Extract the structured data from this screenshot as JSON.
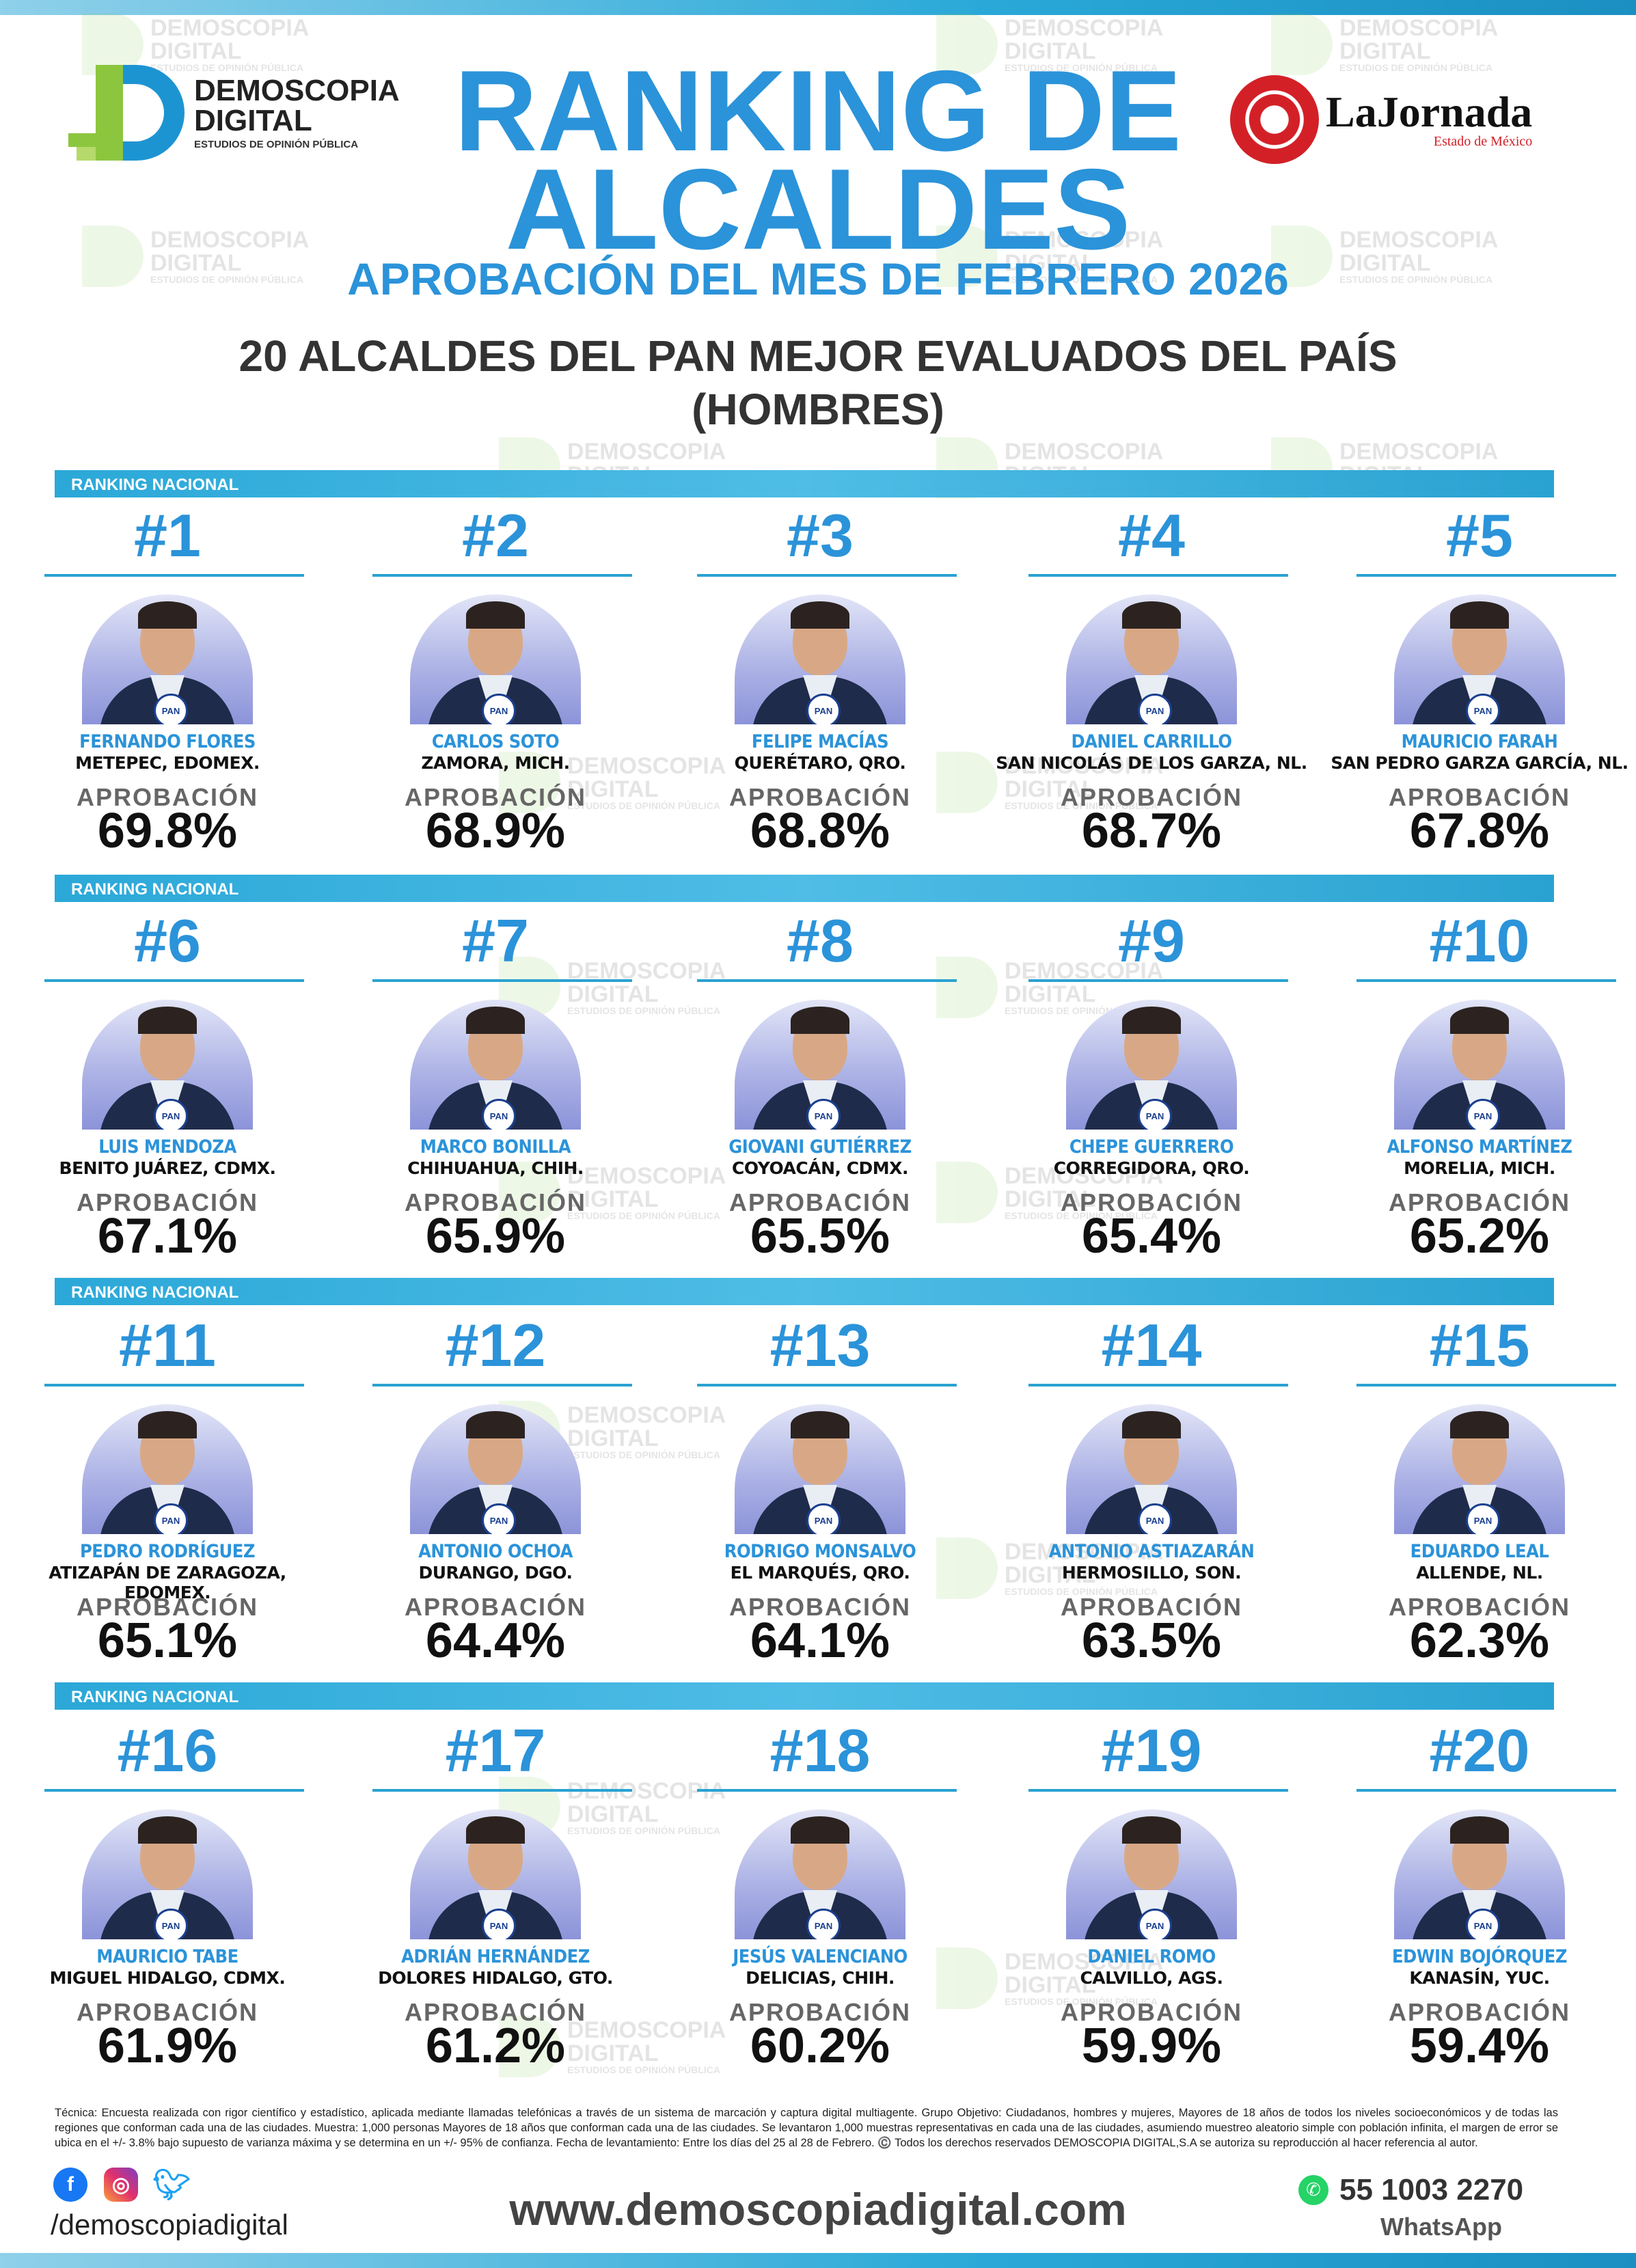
{
  "header": {
    "title_line1": "RANKING DE",
    "title_line2": "ALCALDES",
    "subtitle": "APROBACIÓN DEL MES DE FEBRERO 2026",
    "heading_line1": "20 ALCALDES DEL PAN MEJOR EVALUADOS DEL PAÍS",
    "heading_line2": "(HOMBRES)"
  },
  "logos": {
    "demoscopia": {
      "line1": "DEMOSCOPIA",
      "line2": "DIGITAL",
      "tagline": "ESTUDIOS DE OPINIÓN PÚBLICA"
    },
    "jornada": {
      "name": "LaJornada",
      "sub": "Estado de México"
    }
  },
  "watermark": {
    "line1": "DEMOSCOPIA",
    "line2": "DIGITAL",
    "line3": "ESTUDIOS DE OPINIÓN PÚBLICA"
  },
  "row_label": "RANKING NACIONAL",
  "approval_label": "APROBACIÓN",
  "party_badge": "PAN",
  "mayors": [
    {
      "rank": "#1",
      "name": "FERNANDO FLORES",
      "place": "METEPEC, EDOMEX.",
      "approval": "69.8%"
    },
    {
      "rank": "#2",
      "name": "CARLOS SOTO",
      "place": "ZAMORA, MICH.",
      "approval": "68.9%"
    },
    {
      "rank": "#3",
      "name": "FELIPE MACÍAS",
      "place": "QUERÉTARO, QRO.",
      "approval": "68.8%"
    },
    {
      "rank": "#4",
      "name": "DANIEL CARRILLO",
      "place": "SAN NICOLÁS DE LOS GARZA, NL.",
      "approval": "68.7%"
    },
    {
      "rank": "#5",
      "name": "MAURICIO FARAH",
      "place": "SAN PEDRO GARZA GARCÍA, NL.",
      "approval": "67.8%"
    },
    {
      "rank": "#6",
      "name": "LUIS MENDOZA",
      "place": "BENITO JUÁREZ, CDMX.",
      "approval": "67.1%"
    },
    {
      "rank": "#7",
      "name": "MARCO BONILLA",
      "place": "CHIHUAHUA, CHIH.",
      "approval": "65.9%"
    },
    {
      "rank": "#8",
      "name": "GIOVANI GUTIÉRREZ",
      "place": "COYOACÁN, CDMX.",
      "approval": "65.5%"
    },
    {
      "rank": "#9",
      "name": "CHEPE GUERRERO",
      "place": "CORREGIDORA, QRO.",
      "approval": "65.4%"
    },
    {
      "rank": "#10",
      "name": "ALFONSO MARTÍNEZ",
      "place": "MORELIA, MICH.",
      "approval": "65.2%"
    },
    {
      "rank": "#11",
      "name": "PEDRO RODRÍGUEZ",
      "place": "ATIZAPÁN DE ZARAGOZA, EDOMEX.",
      "approval": "65.1%"
    },
    {
      "rank": "#12",
      "name": "ANTONIO OCHOA",
      "place": "DURANGO, DGO.",
      "approval": "64.4%"
    },
    {
      "rank": "#13",
      "name": "RODRIGO MONSALVO",
      "place": "EL MARQUÉS, QRO.",
      "approval": "64.1%"
    },
    {
      "rank": "#14",
      "name": "ANTONIO ASTIAZARÁN",
      "place": "HERMOSILLO, SON.",
      "approval": "63.5%"
    },
    {
      "rank": "#15",
      "name": "EDUARDO LEAL",
      "place": "ALLENDE, NL.",
      "approval": "62.3%"
    },
    {
      "rank": "#16",
      "name": "MAURICIO TABE",
      "place": "MIGUEL HIDALGO, CDMX.",
      "approval": "61.9%"
    },
    {
      "rank": "#17",
      "name": "ADRIÁN HERNÁNDEZ",
      "place": "DOLORES HIDALGO, GTO.",
      "approval": "61.2%"
    },
    {
      "rank": "#18",
      "name": "JESÚS VALENCIANO",
      "place": "DELICIAS, CHIH.",
      "approval": "60.2%"
    },
    {
      "rank": "#19",
      "name": "DANIEL ROMO",
      "place": "CALVILLO, AGS.",
      "approval": "59.9%"
    },
    {
      "rank": "#20",
      "name": "EDWIN BOJÓRQUEZ",
      "place": "KANASÍN, YUC.",
      "approval": "59.4%"
    }
  ],
  "footer": {
    "technical_note": "Técnica: Encuesta realizada con rigor científico y estadístico, aplicada mediante llamadas telefónicas a través de un sistema de marcación y captura digital multiagente. Grupo Objetivo: Ciudadanos, hombres y mujeres, Mayores de 18 años de todos los niveles socioeconómicos y de todas las regiones que conforman cada una de las ciudades. Muestra: 1,000 personas Mayores de 18 años que conforman cada una de las ciudades. Se levantaron 1,000 muestras representativas en cada una de las ciudades, asumiendo muestreo aleatorio simple con población infinita, el margen de error se ubica en el +/- 3.8% bajo supuesto de varianza máxima y se determina en un +/- 95% de confianza. Fecha de levantamiento: Entre los días del 25 al 28 de Febrero. ©️ Todos los derechos reservados DEMOSCOPIA DIGITAL,S.A se autoriza su reproducción al hacer referencia al autor.",
    "handle": "/demoscopiadigital",
    "website": "www.demoscopiadigital.com",
    "phone": "55 1003 2270",
    "phone_label": "WhatsApp"
  },
  "colors": {
    "accent": "#2b93d9",
    "bar": "#2aa2d1",
    "pan_blue": "#1a3f8f"
  }
}
